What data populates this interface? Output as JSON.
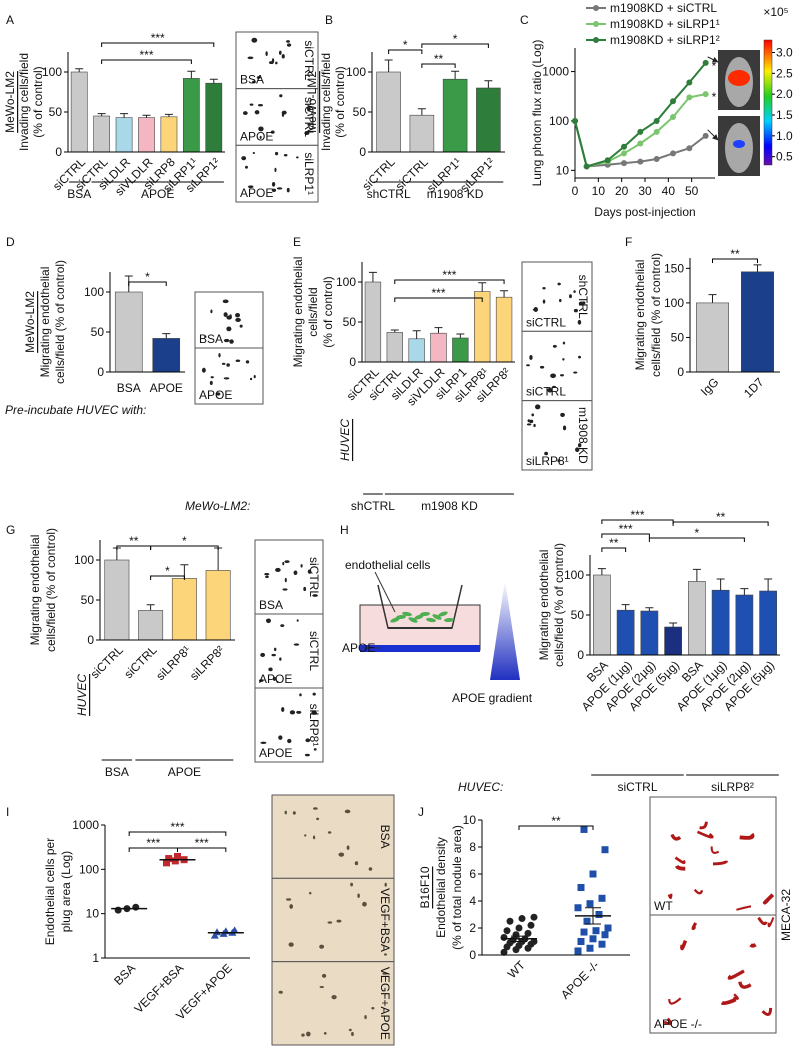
{
  "chart_data": [
    {
      "label": "A",
      "type": "bar",
      "ylabel": [
        "MeWo-LM2",
        "Invading cells/field",
        "(% of control)"
      ],
      "categories": [
        "siCTRL",
        "siCTRL",
        "siLDLR",
        "siVLDLR",
        "siLRP8",
        "siLRP1¹",
        "siLRP1²"
      ],
      "values": [
        100,
        45,
        43,
        43,
        44,
        92,
        86
      ],
      "errors": [
        4,
        3,
        5,
        3,
        3,
        9,
        5
      ],
      "colors": [
        "#c9c9c9",
        "#c9c9c9",
        "#a9d8e8",
        "#f4b6c2",
        "#fcd57a",
        "#3a9a48",
        "#2e7d3a"
      ],
      "ylim": [
        0,
        125
      ],
      "yticks": [
        0,
        50,
        100
      ],
      "significance": [
        "***",
        "***"
      ],
      "groups": [
        "BSA",
        "APOE"
      ],
      "image_labels": [
        "siCTRL",
        "BSA",
        "siCTRL",
        "APOE",
        "siLRP1¹",
        "APOE"
      ]
    },
    {
      "label": "B",
      "type": "bar",
      "ylabel": [
        "MeWo-LM2",
        "Invading cells/field",
        "(% of control)"
      ],
      "categories": [
        "siCTRL",
        "siCTRL",
        "siLRP1¹",
        "siLRP1²"
      ],
      "values": [
        100,
        46,
        91,
        80
      ],
      "errors": [
        15,
        8,
        10,
        9
      ],
      "colors": [
        "#c9c9c9",
        "#c9c9c9",
        "#3a9a48",
        "#2e7d3a"
      ],
      "ylim": [
        0,
        125
      ],
      "yticks": [
        0,
        50,
        100
      ],
      "significance": [
        "*",
        "*",
        "**"
      ],
      "groups": [
        "shCTRL",
        "m1908 KD"
      ]
    },
    {
      "label": "C",
      "type": "line",
      "ylabel": [
        "Lung photon flux ratio (Log)"
      ],
      "xlabel": "Days post-injection",
      "log_y": true,
      "x": [
        0,
        5,
        14,
        21,
        28,
        35,
        42,
        49,
        56
      ],
      "series": [
        {
          "name": "m1908KD + siCTRL",
          "color": "#777777",
          "values": [
            100,
            12,
            13,
            14,
            15,
            17,
            22,
            28,
            50
          ]
        },
        {
          "name": "m1908KD + siLRP1¹",
          "color": "#7cc56f",
          "values": [
            100,
            12,
            15,
            22,
            35,
            60,
            120,
            300,
            350
          ]
        },
        {
          "name": "m1908KD + siLRP1²",
          "color": "#2e7d3a",
          "values": [
            100,
            12,
            16,
            30,
            60,
            100,
            250,
            600,
            1500
          ]
        }
      ],
      "xlim": [
        0,
        60
      ],
      "xticks": [
        0,
        10,
        20,
        30,
        40,
        50
      ],
      "ylim": [
        7,
        3000
      ],
      "yticks": [
        10,
        100,
        1000
      ],
      "significance": [
        "*",
        "*"
      ],
      "colorbar": {
        "title": "×10⁵",
        "ticks": [
          0.5,
          {
            "value": 1,
            "label": "1.0"
          },
          1.5,
          {
            "value": 2,
            "label": "2.0"
          },
          2.5,
          {
            "value": 3,
            "label": "3.0"
          }
        ]
      }
    },
    {
      "label": "D",
      "type": "bar",
      "ylabel": [
        "MeWo-LM2",
        "Migrating endothelial",
        "cells/field (% of control)"
      ],
      "categories": [
        "BSA",
        "APOE"
      ],
      "values": [
        100,
        42
      ],
      "errors": [
        20,
        6
      ],
      "colors": [
        "#c9c9c9",
        "#1c3f8c"
      ],
      "ylim": [
        0,
        125
      ],
      "yticks": [
        0,
        50,
        100
      ],
      "significance": [
        "*"
      ],
      "row_label": "Pre-incubate HUVEC with:",
      "image_labels": [
        "BSA",
        "APOE"
      ]
    },
    {
      "label": "E",
      "type": "bar",
      "ylabel": [
        "Migrating endothelial",
        "cells/field",
        "(% of control)"
      ],
      "categories": [
        "siCTRL",
        "siCTRL",
        "siLDLR",
        "siVLDLR",
        "siLRP1",
        "siLRP8¹",
        "siLRP8²"
      ],
      "values": [
        100,
        37,
        29,
        36,
        30,
        88,
        81
      ],
      "errors": [
        12,
        3,
        10,
        7,
        5,
        11,
        8
      ],
      "colors": [
        "#c9c9c9",
        "#c9c9c9",
        "#a9d8e8",
        "#f4b6c2",
        "#3a9a48",
        "#fcd57a",
        "#fcd57a"
      ],
      "ylim": [
        0,
        125
      ],
      "yticks": [
        0,
        50,
        100
      ],
      "significance": [
        "***",
        "***"
      ],
      "side_label": "HUVEC",
      "row_label": "MeWo-LM2:",
      "groups": [
        "shCTRL",
        "m1908 KD"
      ],
      "image_labels": [
        "shCTRL",
        "siCTRL",
        "siCTRL",
        "m1908 KD",
        "siLRP8¹"
      ]
    },
    {
      "label": "F",
      "type": "bar",
      "ylabel": [
        "Migrating endothelial",
        "cells/field (% of control)"
      ],
      "categories": [
        "IgG",
        "1D7"
      ],
      "values": [
        100,
        145
      ],
      "errors": [
        12,
        10
      ],
      "colors": [
        "#c9c9c9",
        "#1c3f8c"
      ],
      "ylim": [
        0,
        165
      ],
      "yticks": [
        0,
        50,
        100,
        150
      ],
      "significance": [
        "**"
      ]
    },
    {
      "label": "G",
      "type": "bar",
      "ylabel": [
        "Migrating endothelial",
        "cells/field (% of control)"
      ],
      "categories": [
        "siCTRL",
        "siCTRL",
        "siLRP8¹",
        "siLRP8²"
      ],
      "values": [
        100,
        37,
        77,
        87
      ],
      "errors": [
        15,
        7,
        17,
        28
      ],
      "colors": [
        "#c9c9c9",
        "#c9c9c9",
        "#fcd57a",
        "#fcd57a"
      ],
      "ylim": [
        0,
        125
      ],
      "yticks": [
        0,
        50,
        100
      ],
      "significance": [
        "**",
        "*",
        "*"
      ],
      "side_label": "HUVEC",
      "groups": [
        "BSA",
        "APOE"
      ],
      "image_labels": [
        "siCTRL",
        "BSA",
        "siCTRL",
        "APOE",
        "siLRP8¹",
        "APOE"
      ]
    },
    {
      "label": "H",
      "type": "bar",
      "ylabel": [
        "Migrating endothelial",
        "cells/field (% of control)"
      ],
      "categories": [
        "BSA",
        "APOE (1µg)",
        "APOE (2µg)",
        "APOE (5µg)",
        "BSA",
        "APOE (1µg)",
        "APOE (2µg)",
        "APOE (5µg)"
      ],
      "values": [
        100,
        56,
        55,
        35,
        92,
        81,
        75,
        80
      ],
      "errors": [
        8,
        7,
        4,
        5,
        15,
        14,
        8,
        15
      ],
      "colors": [
        "#c9c9c9",
        "#1f4fb0",
        "#1f4fb0",
        "#1a2f80",
        "#c9c9c9",
        "#1f4fb0",
        "#1f4fb0",
        "#1f4fb0"
      ],
      "ylim": [
        0,
        125
      ],
      "yticks": [
        0,
        50,
        100
      ],
      "significance": [
        "***",
        "***",
        "**",
        "**",
        "*"
      ],
      "row_label": "HUVEC:",
      "groups": [
        "siCTRL",
        "siLRP8²"
      ],
      "schematic_labels": [
        "endothelial cells",
        "APOE",
        "APOE gradient"
      ]
    },
    {
      "label": "I",
      "type": "dot",
      "ylabel": [
        "Endothelial cells per",
        "plug area (Log)"
      ],
      "log_y": true,
      "categories": [
        "BSA",
        "VEGF+BSA",
        "VEGF+APOE"
      ],
      "points": [
        [
          12,
          13,
          14
        ],
        [
          140,
          155,
          165,
          175,
          195
        ],
        [
          3.2,
          3.5,
          3.7,
          3.8,
          4.0,
          4.2
        ]
      ],
      "means": [
        13,
        165,
        3.7
      ],
      "colors": [
        "#222222",
        "#c0282d",
        "#2a4fa8"
      ],
      "markers": [
        "circle",
        "square",
        "triangle"
      ],
      "ylim": [
        1,
        1000
      ],
      "yticks": [
        1,
        10,
        100,
        1000
      ],
      "significance": [
        "***",
        "***",
        "***"
      ],
      "image_labels": [
        "BSA",
        "VEGF+BSA",
        "VEGF+APOE"
      ]
    },
    {
      "label": "J",
      "type": "dot",
      "ylabel": [
        "B16F10",
        "Endothelial density",
        "(% of total nodule area)"
      ],
      "categories": [
        "WT",
        "APOE -/-"
      ],
      "points": [
        [
          0.2,
          0.4,
          0.5,
          0.6,
          0.7,
          0.8,
          0.9,
          1.0,
          1.0,
          1.1,
          1.2,
          1.3,
          1.5,
          1.6,
          1.8,
          2.0,
          2.2,
          2.5,
          2.7,
          2.8
        ],
        [
          0.3,
          0.5,
          0.8,
          1.0,
          1.2,
          1.5,
          1.7,
          1.8,
          2.0,
          2.5,
          3.0,
          3.5,
          3.8,
          4.2,
          5.0,
          6.0,
          7.8,
          9.3
        ]
      ],
      "means": [
        1.2,
        2.9
      ],
      "errors": [
        0.2,
        0.6
      ],
      "colors": [
        "#222222",
        "#1f4fa8"
      ],
      "markers": [
        "circle",
        "square"
      ],
      "ylim": [
        0,
        10
      ],
      "yticks": [
        0,
        2,
        4,
        6,
        8,
        10
      ],
      "significance": [
        "**"
      ],
      "image_labels": [
        "WT",
        "APOE -/-"
      ],
      "stain_label": "MECA-32"
    }
  ]
}
